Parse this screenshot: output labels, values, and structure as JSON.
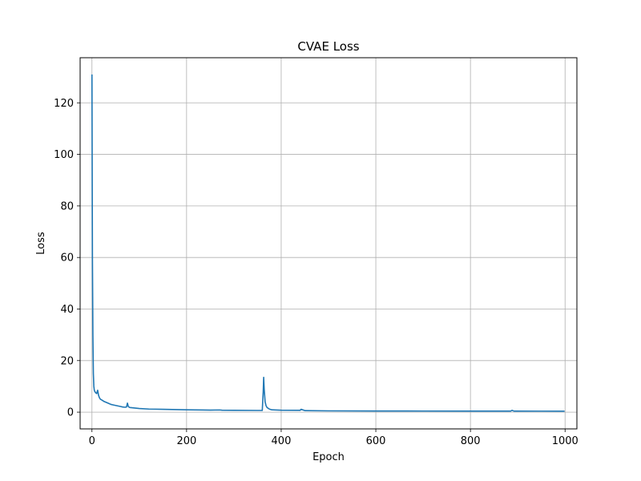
{
  "chart_data": {
    "type": "line",
    "title": "CVAE Loss",
    "xlabel": "Epoch",
    "ylabel": "Loss",
    "xlim": [
      -25,
      1025
    ],
    "ylim": [
      -6.5,
      137.5
    ],
    "xticks": [
      0,
      200,
      400,
      600,
      800,
      1000
    ],
    "yticks": [
      0,
      20,
      40,
      60,
      80,
      100,
      120
    ],
    "grid": true,
    "legend": "none",
    "colors": {
      "line": "#1f77b4",
      "grid": "#b0b0b0",
      "axes": "#000000"
    },
    "series": [
      {
        "x": [
          0,
          1,
          2,
          3,
          4,
          5,
          6,
          8,
          10,
          12,
          14,
          16,
          18,
          20,
          25,
          30,
          35,
          40,
          45,
          50,
          55,
          60,
          65,
          70,
          73,
          75,
          77,
          80,
          90,
          100,
          120,
          150,
          180,
          200,
          250,
          270,
          275,
          300,
          350,
          360,
          362,
          363,
          364,
          366,
          368,
          370,
          375,
          380,
          400,
          440,
          442,
          450,
          500,
          600,
          700,
          800,
          885,
          888,
          892,
          950,
          999
        ],
        "values": [
          131,
          60,
          30,
          15,
          10,
          8.5,
          8,
          7.5,
          7.2,
          8.5,
          6.5,
          5.5,
          5,
          4.8,
          4.2,
          3.8,
          3.4,
          3.0,
          2.8,
          2.6,
          2.4,
          2.2,
          2.0,
          1.9,
          2.0,
          3.5,
          2.1,
          1.8,
          1.6,
          1.4,
          1.2,
          1.1,
          1.0,
          0.9,
          0.8,
          0.85,
          0.75,
          0.7,
          0.65,
          0.65,
          8,
          13.5,
          9,
          4,
          2.5,
          1.8,
          1.2,
          0.9,
          0.75,
          0.7,
          1.1,
          0.6,
          0.5,
          0.45,
          0.42,
          0.4,
          0.4,
          0.7,
          0.4,
          0.38,
          0.35
        ]
      }
    ]
  }
}
